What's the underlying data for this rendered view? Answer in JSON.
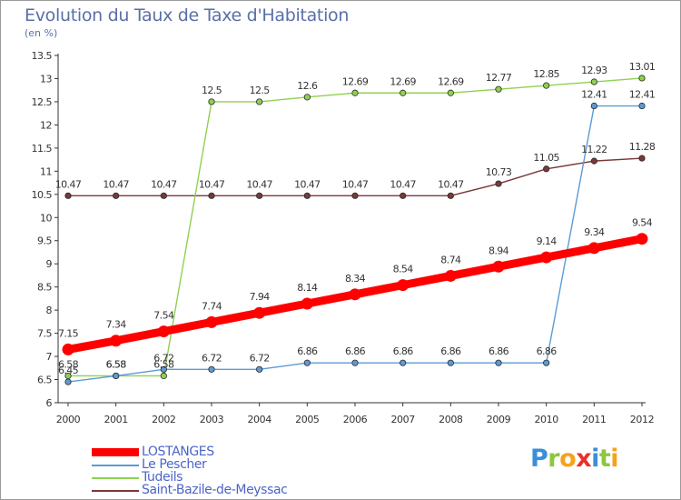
{
  "title": "Evolution du Taux de Taxe d'Habitation",
  "subtitle": "(en %)",
  "logo": {
    "text": "Proxiti",
    "letters": [
      {
        "ch": "P",
        "color": "#3a8fd9"
      },
      {
        "ch": "r",
        "color": "#8dc63f"
      },
      {
        "ch": "o",
        "color": "#f7a21b"
      },
      {
        "ch": "x",
        "color": "#e8302b"
      },
      {
        "ch": "i",
        "color": "#3a8fd9"
      },
      {
        "ch": "t",
        "color": "#8dc63f"
      },
      {
        "ch": "i",
        "color": "#f7a21b"
      }
    ]
  },
  "chart_data": {
    "type": "line",
    "title": "Evolution du Taux de Taxe d'Habitation",
    "subtitle": "(en %)",
    "xlabel": "",
    "ylabel": "",
    "categories": [
      "2000",
      "2001",
      "2002",
      "2003",
      "2004",
      "2005",
      "2006",
      "2007",
      "2008",
      "2009",
      "2010",
      "2011",
      "2012"
    ],
    "ylim": [
      6,
      13.5
    ],
    "yticks": [
      "6",
      "6.5",
      "7",
      "7.5",
      "8",
      "8.5",
      "9",
      "9.5",
      "10",
      "10.5",
      "11",
      "11.5",
      "12",
      "12.5",
      "13",
      "13.5"
    ],
    "grid": false,
    "legend_position": "bottom-left",
    "series": [
      {
        "name": "LOSTANGES",
        "color": "#ff0000",
        "emphasis": true,
        "values": [
          7.15,
          7.34,
          7.54,
          7.74,
          7.94,
          8.14,
          8.34,
          8.54,
          8.74,
          8.94,
          9.14,
          9.34,
          9.54
        ],
        "labels": [
          "7.15",
          "7.34",
          "7.54",
          "7.74",
          "7.94",
          "8.14",
          "8.34",
          "8.54",
          "8.74",
          "8.94",
          "9.14",
          "9.34",
          "9.54"
        ]
      },
      {
        "name": "Le Pescher",
        "color": "#5b9bd5",
        "emphasis": false,
        "values": [
          6.45,
          6.58,
          6.72,
          6.72,
          6.72,
          6.86,
          6.86,
          6.86,
          6.86,
          6.86,
          6.86,
          12.41,
          12.41
        ],
        "labels": [
          "6.45",
          "6.58",
          "6.72",
          "6.72",
          "6.72",
          "6.86",
          "6.86",
          "6.86",
          "6.86",
          "6.86",
          "6.86",
          "12.41",
          "12.41"
        ]
      },
      {
        "name": "Tudeils",
        "color": "#8fd14f",
        "emphasis": false,
        "values": [
          6.58,
          6.58,
          6.58,
          12.5,
          12.5,
          12.6,
          12.69,
          12.69,
          12.69,
          12.77,
          12.85,
          12.93,
          13.01
        ],
        "labels": [
          "6.58",
          "6.58",
          "6.58",
          "12.5",
          "12.5",
          "12.6",
          "12.69",
          "12.69",
          "12.69",
          "12.77",
          "12.85",
          "12.93",
          "13.01"
        ]
      },
      {
        "name": "Saint-Bazile-de-Meyssac",
        "color": "#7a3838",
        "emphasis": false,
        "values": [
          10.47,
          10.47,
          10.47,
          10.47,
          10.47,
          10.47,
          10.47,
          10.47,
          10.47,
          10.73,
          11.05,
          11.22,
          11.28
        ],
        "labels": [
          "10.47",
          "10.47",
          "10.47",
          "10.47",
          "10.47",
          "10.47",
          "10.47",
          "10.47",
          "10.47",
          "10.73",
          "11.05",
          "11.22",
          "11.28"
        ]
      }
    ]
  }
}
